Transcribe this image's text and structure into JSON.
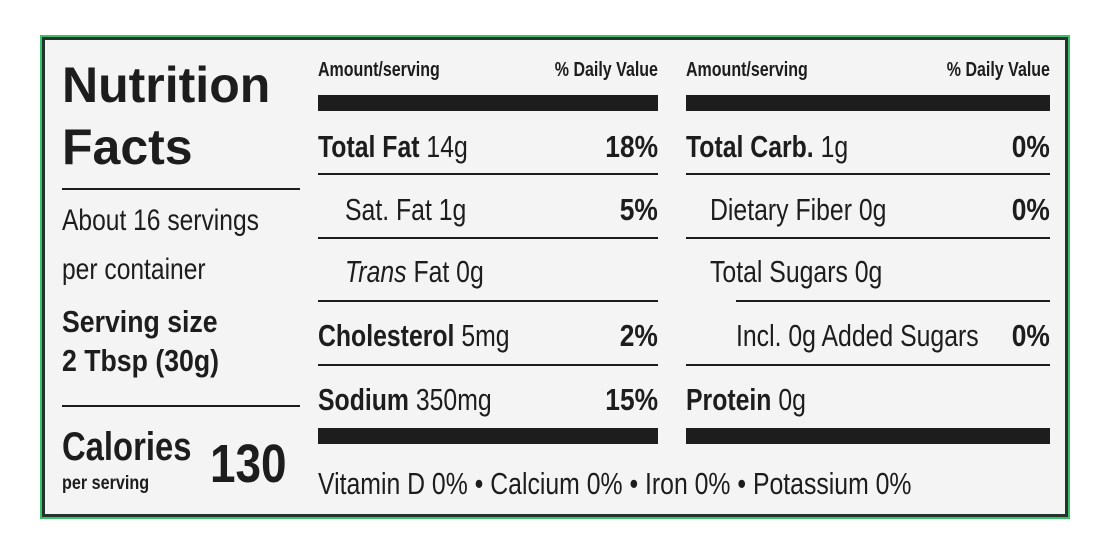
{
  "label": {
    "title_line1": "Nutrition",
    "title_line2": "Facts",
    "servings_line1": "About 16 servings",
    "servings_line2": "per container",
    "serving_size_label": "Serving size",
    "serving_size_value": "2 Tbsp (30g)",
    "calories_label": "Calories",
    "calories_sub": "per serving",
    "calories_value": "130"
  },
  "headers": {
    "amount": "Amount/serving",
    "daily_value": "% Daily Value"
  },
  "left_rows": [
    {
      "name": "Total Fat",
      "amount": "14g",
      "dv": "18%"
    },
    {
      "name": "Sat. Fat",
      "amount": "1g",
      "dv": "5%"
    },
    {
      "name": "Trans",
      "rest": "Fat 0g"
    },
    {
      "name": "Cholesterol",
      "amount": "5mg",
      "dv": "2%"
    },
    {
      "name": "Sodium",
      "amount": "350mg",
      "dv": "15%"
    }
  ],
  "right_rows": [
    {
      "name": "Total Carb.",
      "amount": "1g",
      "dv": "0%"
    },
    {
      "name": "Dietary Fiber",
      "amount": "0g",
      "dv": "0%"
    },
    {
      "name": "Total Sugars",
      "amount": "0g"
    },
    {
      "name": "Incl. 0g Added Sugars",
      "dv": "0%"
    },
    {
      "name": "Protein",
      "amount": "0g"
    }
  ],
  "footer": "Vitamin D 0% • Calcium 0% • Iron 0% • Potassium 0%",
  "colors": {
    "border_green": "#3bc16a",
    "ink": "#1d1d1d",
    "background": "#f3f4f3"
  }
}
